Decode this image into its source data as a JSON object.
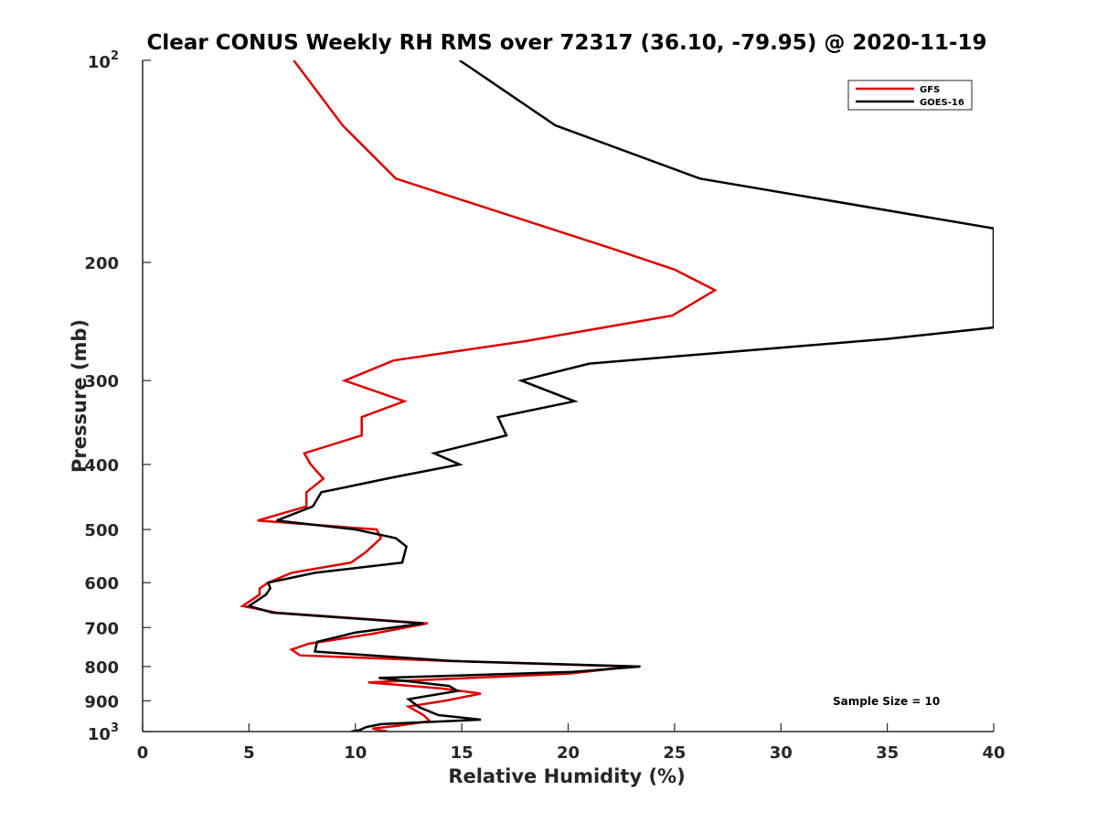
{
  "chart_data": {
    "type": "line",
    "title": "Clear CONUS Weekly RH RMS over 72317 (36.10, -79.95) @ 2020-11-19",
    "xlabel": "Relative Humidity (%)",
    "ylabel": "Pressure (mb)",
    "xlim": [
      0,
      40
    ],
    "ylim": [
      100,
      1000
    ],
    "yscale": "log",
    "y_reversed": true,
    "grid": false,
    "legend_position": "top-right",
    "x_ticks": [
      "0",
      "5",
      "10",
      "15",
      "20",
      "25",
      "30",
      "35",
      "40"
    ],
    "x_tick_values": [
      0,
      5,
      10,
      15,
      20,
      25,
      30,
      35,
      40
    ],
    "y_ticks": [
      "200",
      "300",
      "400",
      "500",
      "600",
      "700",
      "800",
      "900"
    ],
    "y_tick_values": [
      200,
      300,
      400,
      500,
      600,
      700,
      800,
      900
    ],
    "y_tick_top": {
      "base": "10",
      "exp": "2",
      "value": 100
    },
    "y_tick_bottom": {
      "base": "10",
      "exp": "3",
      "value": 1000
    },
    "annotation": "Sample Size = 10",
    "series": [
      {
        "name": "GFS",
        "color": "#dd0000",
        "points": [
          [
            7.1,
            100
          ],
          [
            9.4,
            125
          ],
          [
            11.9,
            150
          ],
          [
            21.9,
            190
          ],
          [
            25.0,
            205
          ],
          [
            26.9,
            220
          ],
          [
            24.9,
            240
          ],
          [
            18.0,
            262
          ],
          [
            11.8,
            280
          ],
          [
            9.5,
            300
          ],
          [
            12.3,
            322
          ],
          [
            10.3,
            340
          ],
          [
            10.3,
            362
          ],
          [
            7.6,
            385
          ],
          [
            7.9,
            400
          ],
          [
            8.5,
            420
          ],
          [
            7.7,
            440
          ],
          [
            7.7,
            462
          ],
          [
            5.4,
            485
          ],
          [
            11.0,
            500
          ],
          [
            11.2,
            515
          ],
          [
            10.5,
            540
          ],
          [
            9.8,
            560
          ],
          [
            7.0,
            580
          ],
          [
            5.9,
            600
          ],
          [
            5.5,
            612
          ],
          [
            5.5,
            625
          ],
          [
            4.7,
            650
          ],
          [
            6.3,
            665
          ],
          [
            13.4,
            690
          ],
          [
            10.8,
            715
          ],
          [
            7.8,
            740
          ],
          [
            7.0,
            755
          ],
          [
            7.4,
            770
          ],
          [
            14.3,
            785
          ],
          [
            23.0,
            800
          ],
          [
            20.0,
            820
          ],
          [
            10.6,
            845
          ],
          [
            14.0,
            862
          ],
          [
            15.9,
            878
          ],
          [
            14.2,
            900
          ],
          [
            12.5,
            918
          ],
          [
            13.2,
            945
          ],
          [
            13.5,
            965
          ],
          [
            12.0,
            980
          ],
          [
            10.8,
            990
          ],
          [
            11.5,
            1000
          ]
        ]
      },
      {
        "name": "GOES-16",
        "color": "#000000",
        "points": [
          [
            14.9,
            100
          ],
          [
            19.4,
            125
          ],
          [
            26.2,
            150
          ],
          [
            40.0,
            178
          ],
          [
            40.0,
            250
          ],
          [
            35.0,
            260
          ],
          [
            21.0,
            283
          ],
          [
            17.8,
            300
          ],
          [
            20.3,
            322
          ],
          [
            16.7,
            340
          ],
          [
            17.1,
            362
          ],
          [
            13.7,
            385
          ],
          [
            14.9,
            400
          ],
          [
            11.8,
            418
          ],
          [
            8.4,
            440
          ],
          [
            8.0,
            462
          ],
          [
            6.3,
            485
          ],
          [
            10.0,
            500
          ],
          [
            11.9,
            515
          ],
          [
            12.4,
            530
          ],
          [
            12.2,
            560
          ],
          [
            8.1,
            580
          ],
          [
            5.9,
            600
          ],
          [
            6.0,
            612
          ],
          [
            5.8,
            625
          ],
          [
            5.0,
            650
          ],
          [
            6.1,
            665
          ],
          [
            13.2,
            690
          ],
          [
            10.0,
            712
          ],
          [
            8.2,
            735
          ],
          [
            8.1,
            760
          ],
          [
            14.5,
            785
          ],
          [
            23.4,
            800
          ],
          [
            20.2,
            815
          ],
          [
            11.1,
            832
          ],
          [
            14.4,
            855
          ],
          [
            14.8,
            870
          ],
          [
            12.5,
            895
          ],
          [
            13.0,
            920
          ],
          [
            13.9,
            945
          ],
          [
            15.9,
            960
          ],
          [
            11.2,
            975
          ],
          [
            10.5,
            985
          ],
          [
            10.2,
            995
          ],
          [
            9.8,
            1000
          ]
        ]
      }
    ]
  }
}
